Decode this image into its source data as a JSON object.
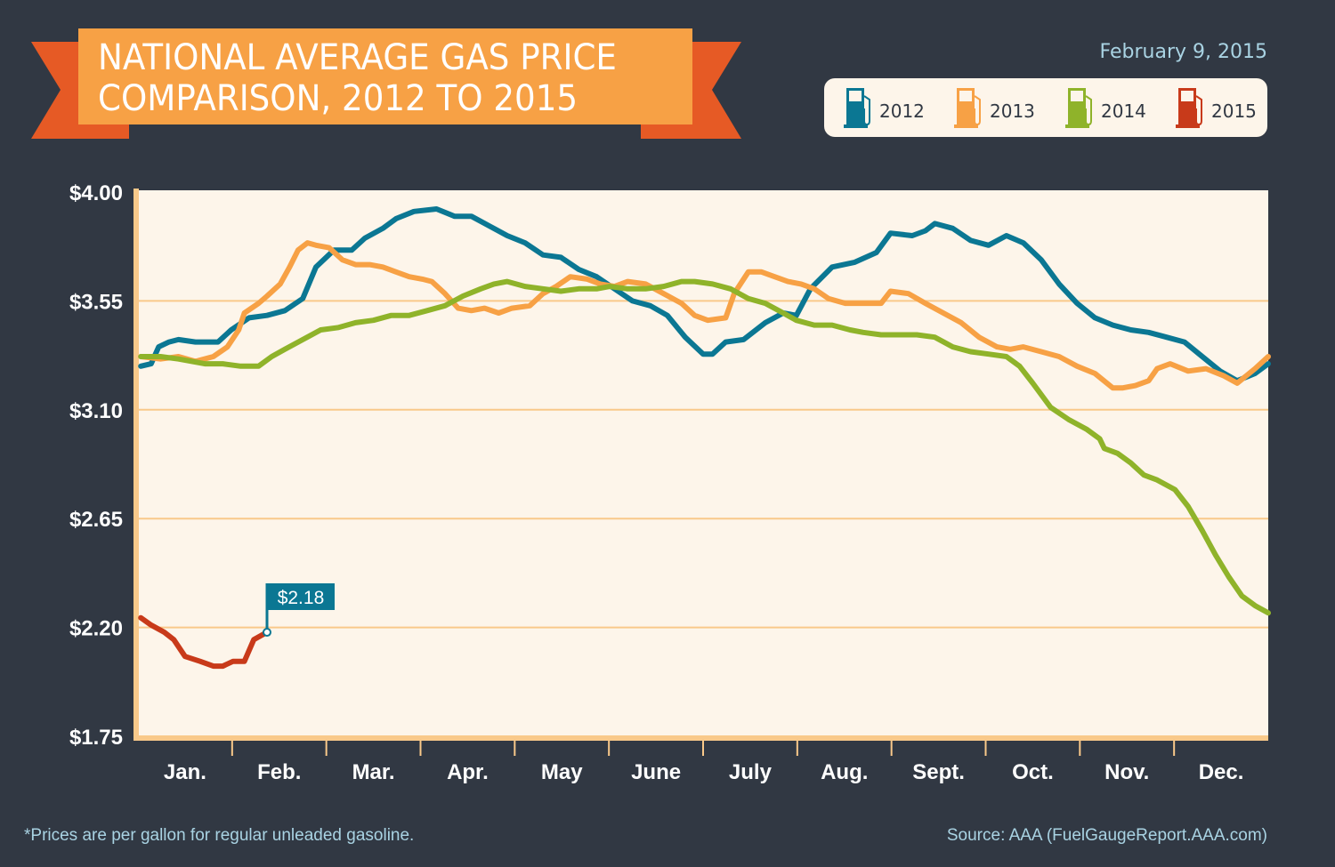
{
  "title_lines": [
    "NATIONAL AVERAGE GAS PRICE",
    "COMPARISON, 2012 TO 2015"
  ],
  "date": "February 9, 2015",
  "footnote": "*Prices are per gallon for regular unleaded gasoline.",
  "source": "Source: AAA (FuelGaugeReport.AAA.com)",
  "colors": {
    "background": "#313843",
    "plot": "#fdf5ea",
    "grid": "#f9c98a",
    "banner": "#f7a145",
    "ribbon": "#e65a25"
  },
  "legend": [
    {
      "label": "2012",
      "color": "#0b7793",
      "icon": "gas-pump-icon"
    },
    {
      "label": "2013",
      "color": "#f7a145",
      "icon": "gas-pump-icon"
    },
    {
      "label": "2014",
      "color": "#8fb32a",
      "icon": "gas-pump-icon"
    },
    {
      "label": "2015",
      "color": "#c83a1a",
      "icon": "gas-pump-icon"
    }
  ],
  "chart_data": {
    "type": "line",
    "title": "NATIONAL AVERAGE GAS PRICE COMPARISON, 2012 TO 2015",
    "xlabel": "",
    "ylabel": "",
    "x_unit": "months since Jan 1",
    "xlim": [
      0,
      12
    ],
    "ylim": [
      1.75,
      4.0
    ],
    "yticks": [
      1.75,
      2.2,
      2.65,
      3.1,
      3.55,
      4.0
    ],
    "ytick_labels": [
      "$1.75",
      "$2.20",
      "$2.65",
      "$3.10",
      "$3.55",
      "$4.00"
    ],
    "xtick_labels": [
      "Jan.",
      "Feb.",
      "Mar.",
      "Apr.",
      "May",
      "June",
      "July",
      "Aug.",
      "Sept.",
      "Oct.",
      "Nov.",
      "Dec."
    ],
    "grid": "horizontal",
    "legend_position": "top-right",
    "annotation": {
      "label": "$2.18",
      "series": "2015",
      "x": 1.37,
      "y": 2.18
    },
    "series": [
      {
        "name": "2012",
        "color": "#0b7793",
        "points": [
          [
            0.03,
            3.28
          ],
          [
            0.14,
            3.29
          ],
          [
            0.22,
            3.36
          ],
          [
            0.33,
            3.38
          ],
          [
            0.43,
            3.39
          ],
          [
            0.61,
            3.38
          ],
          [
            0.85,
            3.38
          ],
          [
            0.99,
            3.43
          ],
          [
            1.18,
            3.48
          ],
          [
            1.37,
            3.49
          ],
          [
            1.56,
            3.51
          ],
          [
            1.75,
            3.56
          ],
          [
            1.89,
            3.69
          ],
          [
            2.08,
            3.76
          ],
          [
            2.27,
            3.76
          ],
          [
            2.41,
            3.81
          ],
          [
            2.6,
            3.85
          ],
          [
            2.74,
            3.89
          ],
          [
            2.93,
            3.92
          ],
          [
            3.17,
            3.93
          ],
          [
            3.36,
            3.9
          ],
          [
            3.54,
            3.9
          ],
          [
            3.73,
            3.86
          ],
          [
            3.92,
            3.82
          ],
          [
            4.11,
            3.79
          ],
          [
            4.3,
            3.74
          ],
          [
            4.49,
            3.73
          ],
          [
            4.68,
            3.68
          ],
          [
            4.87,
            3.65
          ],
          [
            5.06,
            3.6
          ],
          [
            5.25,
            3.55
          ],
          [
            5.44,
            3.53
          ],
          [
            5.62,
            3.49
          ],
          [
            5.81,
            3.4
          ],
          [
            6.0,
            3.33
          ],
          [
            6.1,
            3.33
          ],
          [
            6.24,
            3.38
          ],
          [
            6.43,
            3.39
          ],
          [
            6.66,
            3.46
          ],
          [
            6.85,
            3.5
          ],
          [
            6.99,
            3.49
          ],
          [
            7.14,
            3.6
          ],
          [
            7.37,
            3.69
          ],
          [
            7.61,
            3.71
          ],
          [
            7.84,
            3.75
          ],
          [
            7.99,
            3.83
          ],
          [
            8.22,
            3.82
          ],
          [
            8.36,
            3.84
          ],
          [
            8.46,
            3.87
          ],
          [
            8.65,
            3.85
          ],
          [
            8.84,
            3.8
          ],
          [
            9.03,
            3.78
          ],
          [
            9.22,
            3.82
          ],
          [
            9.4,
            3.79
          ],
          [
            9.59,
            3.72
          ],
          [
            9.78,
            3.62
          ],
          [
            9.97,
            3.54
          ],
          [
            10.16,
            3.48
          ],
          [
            10.35,
            3.45
          ],
          [
            10.54,
            3.43
          ],
          [
            10.73,
            3.42
          ],
          [
            10.92,
            3.4
          ],
          [
            11.11,
            3.38
          ],
          [
            11.3,
            3.32
          ],
          [
            11.49,
            3.26
          ],
          [
            11.67,
            3.22
          ],
          [
            11.86,
            3.25
          ],
          [
            12.0,
            3.29
          ]
        ]
      },
      {
        "name": "2013",
        "color": "#f7a145",
        "points": [
          [
            0.03,
            3.32
          ],
          [
            0.24,
            3.31
          ],
          [
            0.43,
            3.32
          ],
          [
            0.61,
            3.3
          ],
          [
            0.8,
            3.32
          ],
          [
            0.95,
            3.36
          ],
          [
            1.07,
            3.43
          ],
          [
            1.13,
            3.5
          ],
          [
            1.28,
            3.54
          ],
          [
            1.37,
            3.57
          ],
          [
            1.51,
            3.62
          ],
          [
            1.61,
            3.69
          ],
          [
            1.7,
            3.76
          ],
          [
            1.8,
            3.79
          ],
          [
            1.89,
            3.78
          ],
          [
            2.03,
            3.77
          ],
          [
            2.17,
            3.72
          ],
          [
            2.31,
            3.7
          ],
          [
            2.46,
            3.7
          ],
          [
            2.6,
            3.69
          ],
          [
            2.74,
            3.67
          ],
          [
            2.88,
            3.65
          ],
          [
            3.02,
            3.64
          ],
          [
            3.12,
            3.63
          ],
          [
            3.26,
            3.58
          ],
          [
            3.4,
            3.52
          ],
          [
            3.54,
            3.51
          ],
          [
            3.68,
            3.52
          ],
          [
            3.83,
            3.5
          ],
          [
            3.97,
            3.52
          ],
          [
            4.16,
            3.53
          ],
          [
            4.3,
            3.58
          ],
          [
            4.44,
            3.61
          ],
          [
            4.59,
            3.65
          ],
          [
            4.77,
            3.64
          ],
          [
            4.91,
            3.62
          ],
          [
            5.06,
            3.61
          ],
          [
            5.2,
            3.63
          ],
          [
            5.39,
            3.62
          ],
          [
            5.58,
            3.58
          ],
          [
            5.77,
            3.54
          ],
          [
            5.91,
            3.49
          ],
          [
            6.05,
            3.47
          ],
          [
            6.24,
            3.48
          ],
          [
            6.33,
            3.58
          ],
          [
            6.48,
            3.67
          ],
          [
            6.62,
            3.67
          ],
          [
            6.76,
            3.65
          ],
          [
            6.9,
            3.63
          ],
          [
            7.04,
            3.62
          ],
          [
            7.18,
            3.6
          ],
          [
            7.33,
            3.56
          ],
          [
            7.51,
            3.54
          ],
          [
            7.7,
            3.54
          ],
          [
            7.89,
            3.54
          ],
          [
            7.99,
            3.59
          ],
          [
            8.18,
            3.58
          ],
          [
            8.36,
            3.54
          ],
          [
            8.55,
            3.5
          ],
          [
            8.74,
            3.46
          ],
          [
            8.93,
            3.4
          ],
          [
            9.12,
            3.36
          ],
          [
            9.26,
            3.35
          ],
          [
            9.4,
            3.36
          ],
          [
            9.59,
            3.34
          ],
          [
            9.78,
            3.32
          ],
          [
            9.97,
            3.28
          ],
          [
            10.16,
            3.25
          ],
          [
            10.35,
            3.19
          ],
          [
            10.45,
            3.19
          ],
          [
            10.59,
            3.2
          ],
          [
            10.73,
            3.22
          ],
          [
            10.82,
            3.27
          ],
          [
            10.96,
            3.29
          ],
          [
            11.15,
            3.26
          ],
          [
            11.34,
            3.27
          ],
          [
            11.53,
            3.24
          ],
          [
            11.67,
            3.21
          ],
          [
            11.86,
            3.27
          ],
          [
            12.0,
            3.32
          ]
        ]
      },
      {
        "name": "2014",
        "color": "#8fb32a",
        "points": [
          [
            0.03,
            3.32
          ],
          [
            0.24,
            3.32
          ],
          [
            0.43,
            3.31
          ],
          [
            0.71,
            3.29
          ],
          [
            0.9,
            3.29
          ],
          [
            1.09,
            3.28
          ],
          [
            1.28,
            3.28
          ],
          [
            1.42,
            3.32
          ],
          [
            1.56,
            3.35
          ],
          [
            1.75,
            3.39
          ],
          [
            1.94,
            3.43
          ],
          [
            2.13,
            3.44
          ],
          [
            2.31,
            3.46
          ],
          [
            2.5,
            3.47
          ],
          [
            2.69,
            3.49
          ],
          [
            2.88,
            3.49
          ],
          [
            3.07,
            3.51
          ],
          [
            3.26,
            3.53
          ],
          [
            3.45,
            3.57
          ],
          [
            3.64,
            3.6
          ],
          [
            3.78,
            3.62
          ],
          [
            3.92,
            3.63
          ],
          [
            4.11,
            3.61
          ],
          [
            4.3,
            3.6
          ],
          [
            4.49,
            3.59
          ],
          [
            4.68,
            3.6
          ],
          [
            4.87,
            3.6
          ],
          [
            5.01,
            3.61
          ],
          [
            5.2,
            3.6
          ],
          [
            5.39,
            3.6
          ],
          [
            5.58,
            3.61
          ],
          [
            5.77,
            3.63
          ],
          [
            5.91,
            3.63
          ],
          [
            6.1,
            3.62
          ],
          [
            6.29,
            3.6
          ],
          [
            6.48,
            3.56
          ],
          [
            6.66,
            3.54
          ],
          [
            6.85,
            3.5
          ],
          [
            6.99,
            3.47
          ],
          [
            7.18,
            3.45
          ],
          [
            7.37,
            3.45
          ],
          [
            7.56,
            3.43
          ],
          [
            7.7,
            3.42
          ],
          [
            7.89,
            3.41
          ],
          [
            8.08,
            3.41
          ],
          [
            8.27,
            3.41
          ],
          [
            8.46,
            3.4
          ],
          [
            8.65,
            3.36
          ],
          [
            8.84,
            3.34
          ],
          [
            9.03,
            3.33
          ],
          [
            9.22,
            3.32
          ],
          [
            9.36,
            3.28
          ],
          [
            9.5,
            3.21
          ],
          [
            9.69,
            3.11
          ],
          [
            9.88,
            3.06
          ],
          [
            10.07,
            3.02
          ],
          [
            10.21,
            2.98
          ],
          [
            10.26,
            2.94
          ],
          [
            10.4,
            2.92
          ],
          [
            10.54,
            2.88
          ],
          [
            10.68,
            2.83
          ],
          [
            10.82,
            2.81
          ],
          [
            11.01,
            2.77
          ],
          [
            11.15,
            2.7
          ],
          [
            11.3,
            2.6
          ],
          [
            11.44,
            2.5
          ],
          [
            11.58,
            2.41
          ],
          [
            11.72,
            2.33
          ],
          [
            11.86,
            2.29
          ],
          [
            12.0,
            2.26
          ]
        ]
      },
      {
        "name": "2015",
        "color": "#c83a1a",
        "points": [
          [
            0.03,
            2.24
          ],
          [
            0.14,
            2.21
          ],
          [
            0.28,
            2.18
          ],
          [
            0.38,
            2.15
          ],
          [
            0.5,
            2.08
          ],
          [
            0.66,
            2.06
          ],
          [
            0.8,
            2.04
          ],
          [
            0.9,
            2.04
          ],
          [
            1.01,
            2.06
          ],
          [
            1.13,
            2.06
          ],
          [
            1.23,
            2.15
          ],
          [
            1.37,
            2.18
          ]
        ]
      }
    ]
  }
}
